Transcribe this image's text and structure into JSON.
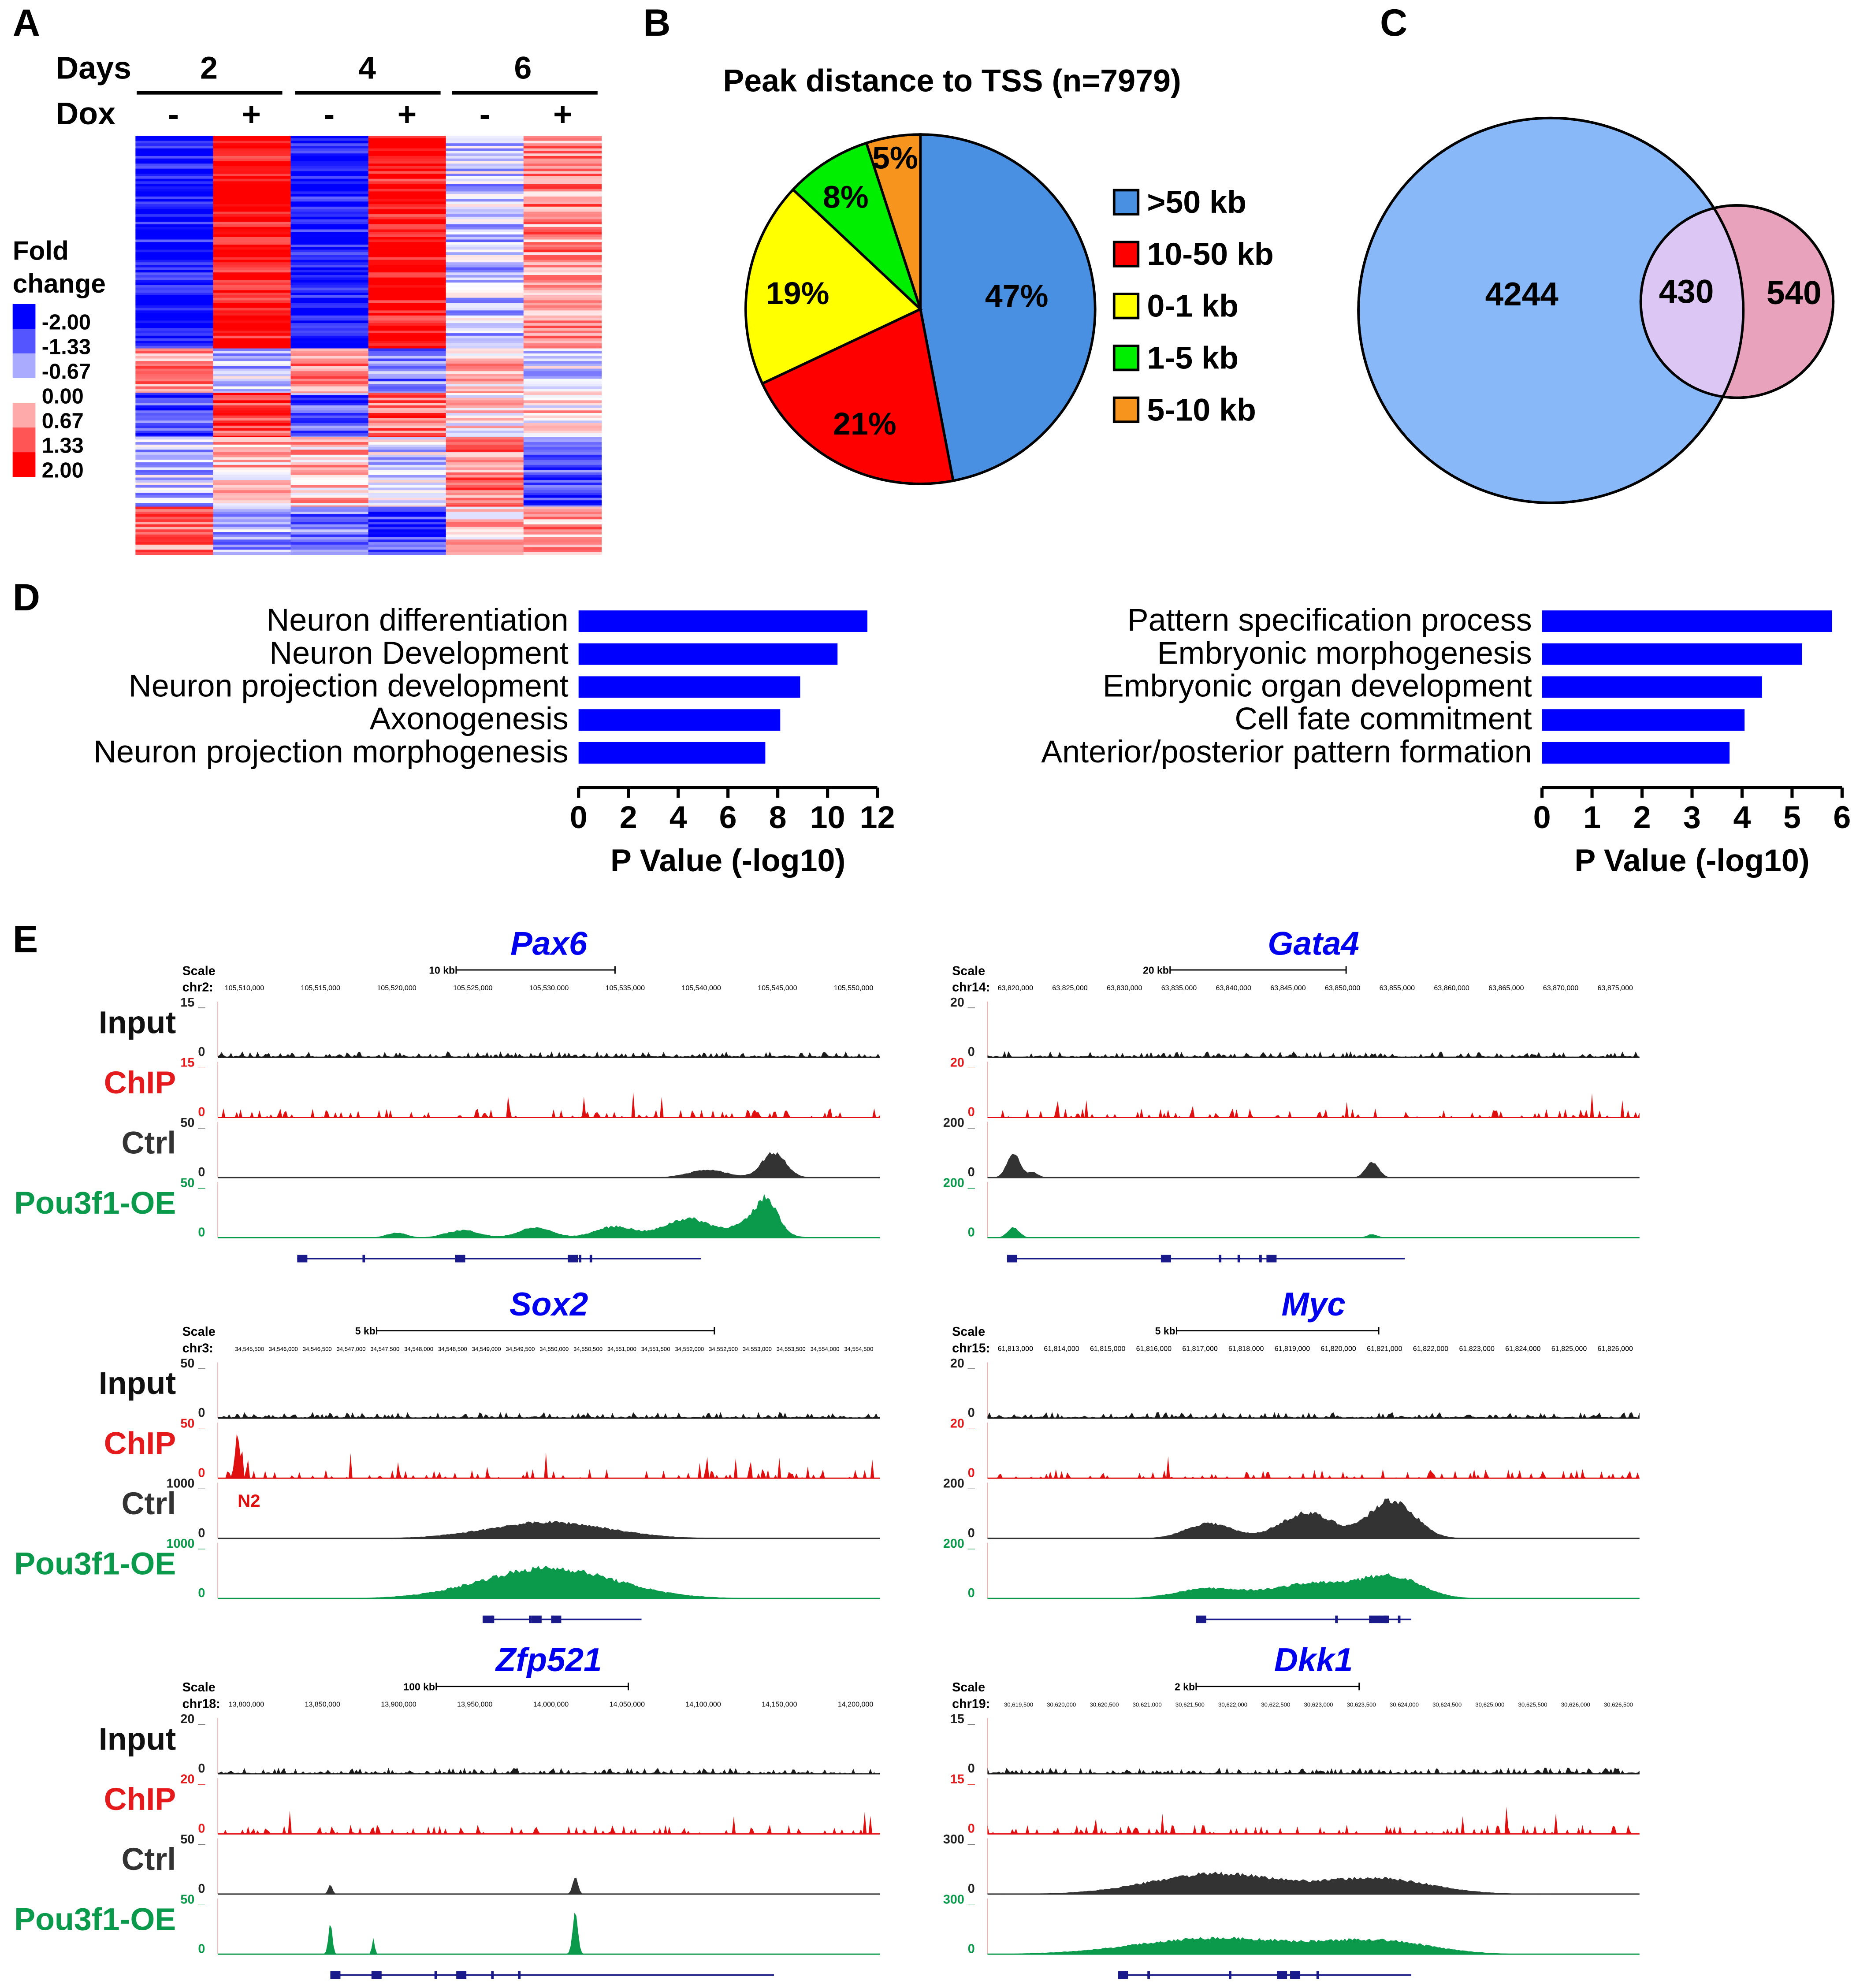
{
  "panel_labels": [
    "A",
    "B",
    "C",
    "D",
    "E"
  ],
  "heatmap": {
    "days_label": "Days",
    "dox_label": "Dox",
    "days": [
      "2",
      "4",
      "6"
    ],
    "dox": [
      "-",
      "+",
      "-",
      "+",
      "-",
      "+"
    ],
    "legend_title_1": "Fold",
    "legend_title_2": "change",
    "legend": [
      {
        "label": "-2.00",
        "color": "#0000ff"
      },
      {
        "label": "-1.33",
        "color": "#5555ff"
      },
      {
        "label": "-0.67",
        "color": "#aaaaff"
      },
      {
        "label": "0.00",
        "color": "#ffffff"
      },
      {
        "label": "0.67",
        "color": "#ffaaaa"
      },
      {
        "label": "1.33",
        "color": "#ff5555"
      },
      {
        "label": "2.00",
        "color": "#ff0000"
      }
    ]
  },
  "chart_data": [
    {
      "type": "heatmap",
      "title": "Fold change",
      "columns": [
        "Day2 -",
        "Day2 +",
        "Day4 -",
        "Day4 +",
        "Day6 -",
        "Day6 +"
      ],
      "value_range": [
        -2,
        2
      ],
      "cluster_mean_values": [
        [
          -2.0,
          2.0,
          -2.0,
          2.0,
          -0.5,
          0.9
        ],
        [
          0.8,
          -0.5,
          1.0,
          -1.0,
          0.5,
          -0.3
        ],
        [
          -1.5,
          1.6,
          -1.2,
          1.2,
          0.2,
          0.3
        ],
        [
          -0.5,
          0.5,
          0.6,
          -0.3,
          1.0,
          -1.4
        ],
        [
          1.0,
          -0.7,
          -1.0,
          -1.5,
          0.5,
          0.8
        ]
      ]
    },
    {
      "type": "pie",
      "title": "Peak distance to TSS (n=7979)",
      "slices": [
        {
          "label": ">50 kb",
          "value": 47,
          "text": "47%",
          "color": "#4a90e2"
        },
        {
          "label": "10-50 kb",
          "value": 21,
          "text": "21%",
          "color": "#ff0000"
        },
        {
          "label": "0-1 kb",
          "value": 19,
          "text": "19%",
          "color": "#ffff00"
        },
        {
          "label": "1-5 kb",
          "value": 8,
          "text": "8%",
          "color": "#00ee00"
        },
        {
          "label": "5-10 kb",
          "value": 5,
          "text": "5%",
          "color": "#f7941d"
        }
      ],
      "legend_position": "right"
    },
    {
      "type": "venn",
      "sets": [
        {
          "only": 4244,
          "color": "#88b8f8"
        },
        {
          "only": 540,
          "color": "#e8a2bc"
        }
      ],
      "overlap": 430,
      "overlap_color": "#dcc6f4"
    },
    {
      "type": "bar",
      "orientation": "horizontal",
      "categories": [
        "Neuron differentiation",
        "Neuron Development",
        "Neuron projection development",
        "Axonogenesis",
        "Neuron projection morphogenesis"
      ],
      "values": [
        11.6,
        10.4,
        8.9,
        8.1,
        7.5
      ],
      "xlabel": "P Value (-log10)",
      "xlim": [
        0,
        12
      ],
      "xticks": [
        "0",
        "2",
        "4",
        "6",
        "8",
        "10",
        "12"
      ],
      "color": "#0000ff"
    },
    {
      "type": "bar",
      "orientation": "horizontal",
      "categories": [
        "Pattern specification process",
        "Embryonic morphogenesis",
        "Embryonic organ development",
        "Cell fate commitment",
        "Anterior/posterior pattern formation"
      ],
      "values": [
        5.8,
        5.2,
        4.4,
        4.05,
        3.75
      ],
      "xlabel": "P Value (-log10)",
      "xlim": [
        0,
        6
      ],
      "xticks": [
        "0",
        "1",
        "2",
        "3",
        "4",
        "5",
        "6"
      ],
      "color": "#0000ff"
    }
  ],
  "tracks": {
    "labels": [
      "Input",
      "ChIP",
      "Ctrl",
      "Pou3f1-OE"
    ],
    "colors": [
      "#1a1a1a",
      "#e01010",
      "#333333",
      "#0b9a4c"
    ],
    "label_colors": [
      "#111111",
      "#e41a1c",
      "#333333",
      "#0b9a4c"
    ],
    "scale_label": "Scale",
    "loci": [
      {
        "gene": "Pax6",
        "chr": "chr2:",
        "scale": "10 kb",
        "ymax": [
          "15",
          "15",
          "50",
          "50"
        ],
        "ticks": [
          "105,510,000",
          "105,515,000",
          "105,520,000",
          "105,525,000",
          "105,530,000",
          "105,535,000",
          "105,540,000",
          "105,545,000",
          "105,550,000"
        ]
      },
      {
        "gene": "Sox2",
        "chr": "chr3:",
        "scale": "5 kb",
        "ymax": [
          "50",
          "50",
          "1000",
          "1000"
        ],
        "annotation": "N2",
        "ticks": [
          "34,545,500",
          "34,546,000",
          "34,546,500",
          "34,547,000",
          "34,547,500",
          "34,548,000",
          "34,548,500",
          "34,549,000",
          "34,549,500",
          "34,550,000",
          "34,550,500",
          "34,551,000",
          "34,551,500",
          "34,552,000",
          "34,552,500",
          "34,553,000",
          "34,553,500",
          "34,554,000",
          "34,554,500"
        ]
      },
      {
        "gene": "Zfp521",
        "chr": "chr18:",
        "scale": "100 kb",
        "ymax": [
          "20",
          "20",
          "50",
          "50"
        ],
        "ticks": [
          "13,800,000",
          "13,850,000",
          "13,900,000",
          "13,950,000",
          "14,000,000",
          "14,050,000",
          "14,100,000",
          "14,150,000",
          "14,200,000"
        ]
      },
      {
        "gene": "Gata4",
        "chr": "chr14:",
        "scale": "20 kb",
        "ymax": [
          "20",
          "20",
          "200",
          "200"
        ],
        "ticks": [
          "63,820,000",
          "63,825,000",
          "63,830,000",
          "63,835,000",
          "63,840,000",
          "63,845,000",
          "63,850,000",
          "63,855,000",
          "63,860,000",
          "63,865,000",
          "63,870,000",
          "63,875,000"
        ]
      },
      {
        "gene": "Myc",
        "chr": "chr15:",
        "scale": "5 kb",
        "ymax": [
          "20",
          "20",
          "200",
          "200"
        ],
        "ticks": [
          "61,813,000",
          "61,814,000",
          "61,815,000",
          "61,816,000",
          "61,817,000",
          "61,818,000",
          "61,819,000",
          "61,820,000",
          "61,821,000",
          "61,822,000",
          "61,823,000",
          "61,824,000",
          "61,825,000",
          "61,826,000"
        ]
      },
      {
        "gene": "Dkk1",
        "chr": "chr19:",
        "scale": "2 kb",
        "ymax": [
          "15",
          "15",
          "300",
          "300"
        ],
        "ticks": [
          "30,619,500",
          "30,620,000",
          "30,620,500",
          "30,621,000",
          "30,621,500",
          "30,622,000",
          "30,622,500",
          "30,623,000",
          "30,623,500",
          "30,624,000",
          "30,624,500",
          "30,625,000",
          "30,625,500",
          "30,626,000",
          "30,626,500"
        ]
      }
    ],
    "zero_label": "0"
  }
}
